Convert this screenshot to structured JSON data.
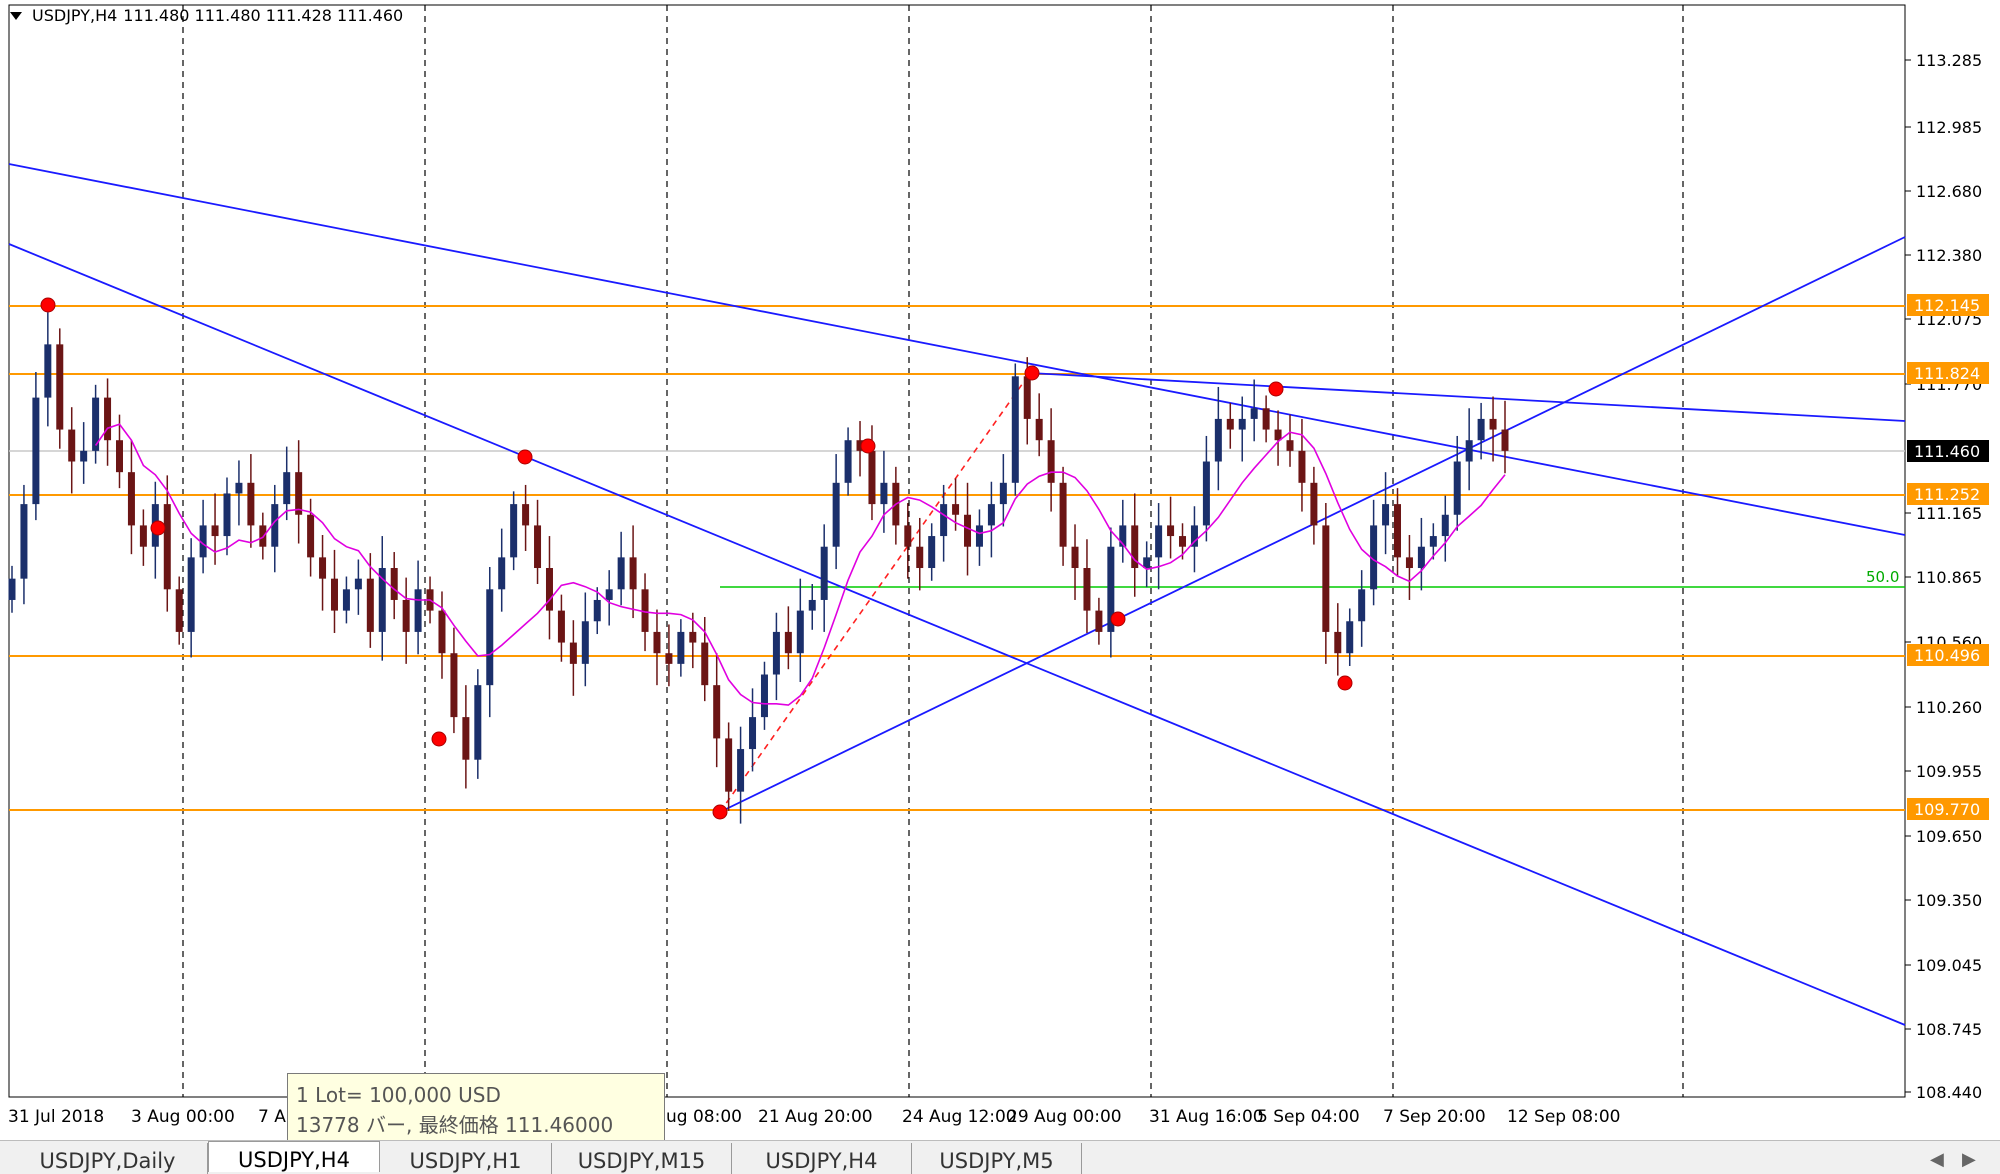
{
  "header": {
    "symbol": "USDJPY,H4",
    "ohlc": "111.480 111.480 111.428 111.460"
  },
  "price_axis": {
    "labels": [
      "113.285",
      "112.985",
      "112.680",
      "112.380",
      "112.075",
      "111.770",
      "111.165",
      "110.865",
      "110.560",
      "110.260",
      "109.955",
      "109.650",
      "109.350",
      "109.045",
      "108.745",
      "108.440"
    ],
    "level_tags": [
      {
        "text": "112.145",
        "color": "#ff9900"
      },
      {
        "text": "111.824",
        "color": "#ff9900"
      },
      {
        "text": "111.460",
        "color": "#000000"
      },
      {
        "text": "111.252",
        "color": "#ff9900"
      },
      {
        "text": "110.496",
        "color": "#ff9900"
      },
      {
        "text": "109.770",
        "color": "#ff9900"
      }
    ]
  },
  "time_axis": {
    "labels": [
      "31 Jul 2018",
      "3 Aug 00:00",
      "7 A",
      "ug 08:00",
      "21 Aug 20:00",
      "24 Aug 12:00",
      "29 Aug 00:00",
      "31 Aug 16:00",
      "5 Sep 04:00",
      "7 Sep 20:00",
      "12 Sep 08:00"
    ]
  },
  "fib_label": "50.0",
  "tooltip": {
    "line1": "1 Lot= 100,000 USD",
    "line2": "13778 バー, 最終価格 111.46000"
  },
  "tabs": [
    {
      "label": "USDJPY,Daily",
      "active": false
    },
    {
      "label": "USDJPY,H4",
      "active": true
    },
    {
      "label": "USDJPY,H1",
      "active": false
    },
    {
      "label": "USDJPY,M15",
      "active": false
    },
    {
      "label": "USDJPY,H4",
      "active": false
    },
    {
      "label": "USDJPY,M5",
      "active": false
    }
  ],
  "scroll_left": "◀",
  "scroll_right": "▶",
  "colors": {
    "candle_up": "#1b2f6b",
    "candle_down": "#6b1515",
    "ma": "#e000e0",
    "trendline": "#1a1aff",
    "horizontal": "#ff9900",
    "fib": "#00cc00",
    "pivot": "#ff0000"
  },
  "chart_data": {
    "type": "candlestick",
    "symbol": "USDJPY",
    "timeframe": "H4",
    "close": [
      110.85,
      111.2,
      111.7,
      111.95,
      111.55,
      111.4,
      111.45,
      111.7,
      111.5,
      111.35,
      111.1,
      111.0,
      111.2,
      110.8,
      110.6,
      110.95,
      111.1,
      111.05,
      111.25,
      111.3,
      111.1,
      111.0,
      111.2,
      111.35,
      111.15,
      110.95,
      110.85,
      110.7,
      110.8,
      110.85,
      110.6,
      110.9,
      110.75,
      110.6,
      110.8,
      110.7,
      110.5,
      110.2,
      110.0,
      110.35,
      110.8,
      110.95,
      111.2,
      111.1,
      110.9,
      110.7,
      110.55,
      110.45,
      110.65,
      110.75,
      110.8,
      110.95,
      110.8,
      110.6,
      110.5,
      110.45,
      110.6,
      110.55,
      110.35,
      110.1,
      109.85,
      110.05,
      110.2,
      110.4,
      110.6,
      110.5,
      110.7,
      110.75,
      111.0,
      111.3,
      111.5,
      111.45,
      111.2,
      111.3,
      111.1,
      111.0,
      110.9,
      111.05,
      111.2,
      111.15,
      111.0,
      111.1,
      111.2,
      111.3,
      111.8,
      111.6,
      111.5,
      111.3,
      111.0,
      110.9,
      110.7,
      110.6,
      111.0,
      111.1,
      110.9,
      110.95,
      111.1,
      111.05,
      111.0,
      111.1,
      111.4,
      111.6,
      111.55,
      111.6,
      111.65,
      111.55,
      111.5,
      111.45,
      111.3,
      111.1,
      110.6,
      110.5,
      110.65,
      110.8,
      111.1,
      111.2,
      110.95,
      110.9,
      111.0,
      111.05,
      111.15,
      111.4,
      111.5,
      111.6,
      111.55,
      111.45
    ]
  }
}
